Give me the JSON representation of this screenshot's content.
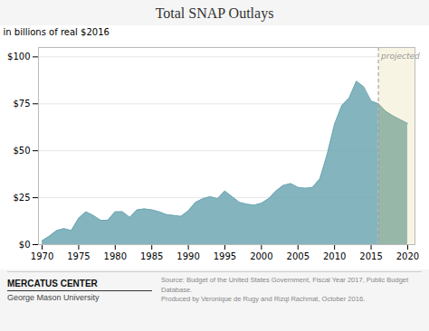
{
  "chart_data": {
    "type": "area",
    "title": "Total SNAP Outlays",
    "ylabel": "in billions of real $2016",
    "source_text": "Source: Budget of the United States Government, Fiscal Year 2017, Public Budget Database.\nProduced by Veronique de Rugy and Rizqi Rachmat, October 2016.",
    "projected_label": "projected",
    "projection_start": 2016,
    "logo_text": "MERCATUS CENTER",
    "logo_subtitle": "George Mason University",
    "color": "#6fa8b4",
    "projected_color": "#7ea89a",
    "projected_bg_color": "#f7f4e3",
    "grid": true,
    "xlim": [
      1969.5,
      2021
    ],
    "ylim": [
      0,
      105
    ],
    "xticks": [
      1970,
      1975,
      1980,
      1985,
      1990,
      1995,
      2000,
      2005,
      2010,
      2015,
      2020
    ],
    "yticks": [
      {
        "value": 0,
        "label": "$0"
      },
      {
        "value": 25,
        "label": "$25"
      },
      {
        "value": 50,
        "label": "$50"
      },
      {
        "value": 75,
        "label": "$75"
      },
      {
        "value": 100,
        "label": "$100"
      }
    ],
    "x": [
      1970,
      1971,
      1972,
      1973,
      1974,
      1975,
      1976,
      1977,
      1978,
      1979,
      1980,
      1981,
      1982,
      1983,
      1984,
      1985,
      1986,
      1987,
      1988,
      1989,
      1990,
      1991,
      1992,
      1993,
      1994,
      1995,
      1996,
      1997,
      1998,
      1999,
      2000,
      2001,
      2002,
      2003,
      2004,
      2005,
      2006,
      2007,
      2008,
      2009,
      2010,
      2011,
      2012,
      2013,
      2014,
      2015,
      2016,
      2017,
      2018,
      2019,
      2020
    ],
    "values": [
      2.0,
      4.5,
      7.5,
      8.5,
      7.5,
      14.0,
      17.5,
      15.5,
      13.0,
      13.0,
      17.5,
      17.5,
      14.5,
      18.5,
      19.0,
      18.5,
      17.5,
      16.0,
      15.5,
      15.0,
      18.0,
      22.5,
      24.5,
      25.5,
      24.5,
      28.5,
      25.5,
      22.5,
      21.5,
      21.0,
      22.0,
      24.5,
      28.5,
      31.5,
      32.5,
      30.5,
      30.0,
      30.5,
      35.0,
      48.0,
      64.0,
      74.0,
      78.0,
      87.0,
      84.0,
      76.5,
      75.0,
      71.0,
      68.5,
      66.5,
      64.5
    ]
  }
}
